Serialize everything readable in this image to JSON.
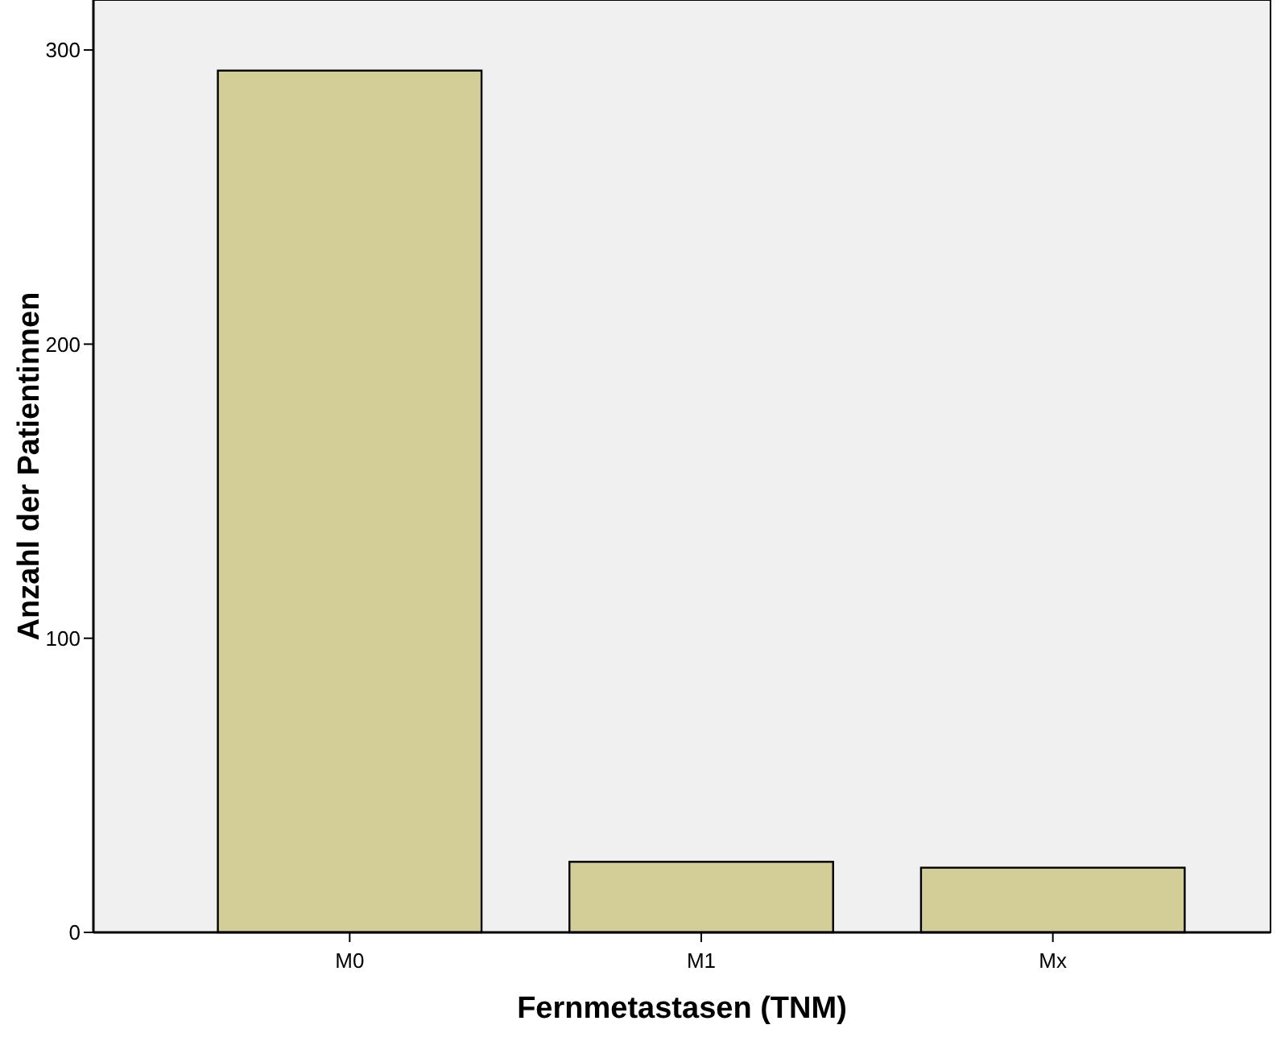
{
  "chart_data": {
    "type": "bar",
    "xlabel": "Fernmetastasen (TNM)",
    "ylabel": "Anzahl der Patientinnen",
    "categories": [
      "M0",
      "M1",
      "Mx"
    ],
    "values": [
      293,
      24,
      22
    ],
    "color": "#d3ce98",
    "ylim": [
      0,
      317
    ],
    "yticks": [
      0,
      100,
      200,
      300
    ],
    "grid": false
  }
}
